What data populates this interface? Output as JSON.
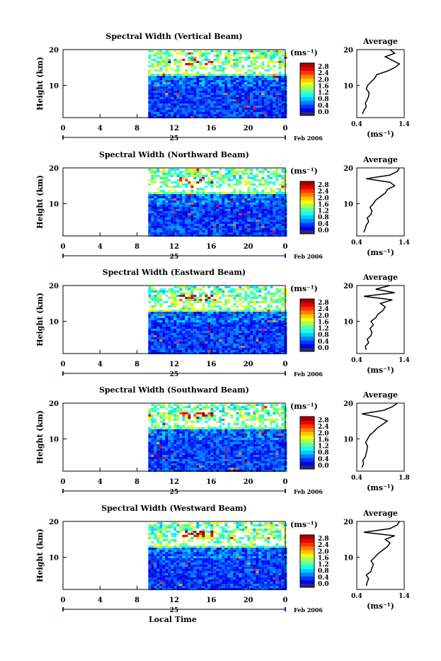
{
  "figure": {
    "date_label": "Feb 2006",
    "day_label": "25",
    "xlabel": "Local Time",
    "ylabel": "Height (km)",
    "unit_label": "(ms⁻¹)",
    "average_title": "Average",
    "average_xlabel": "(ms⁻¹)"
  },
  "chart_data": [
    {
      "type": "heatmap",
      "title": "Spectral Width (Vertical Beam)",
      "x_ticks": [
        "0",
        "4",
        "8",
        "12",
        "16",
        "20",
        "0"
      ],
      "xlim": [
        0,
        24
      ],
      "y_ticks": [
        "20",
        "10"
      ],
      "ylim": [
        1,
        20
      ],
      "data_start_hour": 9.2,
      "colorbar_ticks": [
        "2.8",
        "2.4",
        "2.0",
        "1.6",
        "1.2",
        "0.8",
        "0.4",
        "0.0"
      ],
      "colorbar_range": [
        0,
        2.8
      ],
      "average": {
        "x_ticks": [
          "0.4",
          "1.4"
        ],
        "xlim": [
          0.4,
          1.4
        ],
        "ylim": [
          1,
          20
        ],
        "height_km": [
          2,
          3,
          4,
          5,
          6,
          7,
          8,
          9,
          10,
          11,
          12,
          13,
          14,
          15,
          16,
          17,
          18,
          19,
          20
        ],
        "width_ms": [
          0.52,
          0.55,
          0.6,
          0.58,
          0.62,
          0.65,
          0.66,
          0.6,
          0.63,
          0.7,
          0.78,
          0.82,
          1.05,
          1.2,
          1.3,
          1.15,
          1.0,
          1.2,
          1.1
        ]
      }
    },
    {
      "type": "heatmap",
      "title": "Spectral Width (Northward Beam)",
      "x_ticks": [
        "0",
        "4",
        "8",
        "12",
        "16",
        "20",
        "0"
      ],
      "xlim": [
        0,
        24
      ],
      "y_ticks": [
        "20",
        "10"
      ],
      "ylim": [
        1,
        20
      ],
      "data_start_hour": 9.2,
      "colorbar_ticks": [
        "2.8",
        "2.4",
        "2.0",
        "1.6",
        "1.2",
        "0.8",
        "0.4",
        "0.0"
      ],
      "colorbar_range": [
        0,
        2.8
      ],
      "average": {
        "x_ticks": [
          "0.4",
          "1.4"
        ],
        "xlim": [
          0.4,
          1.4
        ],
        "ylim": [
          1,
          20
        ],
        "height_km": [
          2,
          3,
          4,
          5,
          6,
          7,
          8,
          9,
          10,
          11,
          12,
          13,
          14,
          15,
          16,
          17,
          18,
          19,
          20
        ],
        "width_ms": [
          0.55,
          0.58,
          0.6,
          0.65,
          0.62,
          0.7,
          0.72,
          0.68,
          0.75,
          0.8,
          0.9,
          1.0,
          1.05,
          1.2,
          1.1,
          0.6,
          1.1,
          1.25,
          1.3
        ]
      }
    },
    {
      "type": "heatmap",
      "title": "Spectral Width (Eastward Beam)",
      "x_ticks": [
        "0",
        "4",
        "8",
        "12",
        "16",
        "20",
        "0"
      ],
      "xlim": [
        0,
        24
      ],
      "y_ticks": [
        "20",
        "10"
      ],
      "ylim": [
        1,
        20
      ],
      "data_start_hour": 9.2,
      "colorbar_ticks": [
        "2.8",
        "2.4",
        "2.0",
        "1.6",
        "1.2",
        "0.8",
        "0.4",
        "0.0"
      ],
      "colorbar_range": [
        0,
        2.8
      ],
      "average": {
        "x_ticks": [
          "0.4",
          "1.4"
        ],
        "xlim": [
          0.4,
          1.4
        ],
        "ylim": [
          1,
          20
        ],
        "height_km": [
          2,
          3,
          4,
          5,
          6,
          7,
          8,
          9,
          10,
          11,
          12,
          13,
          14,
          15,
          16,
          17,
          18,
          19,
          20
        ],
        "width_ms": [
          0.6,
          0.58,
          0.65,
          0.62,
          0.7,
          0.72,
          0.68,
          0.75,
          0.7,
          0.8,
          0.85,
          0.95,
          1.0,
          0.9,
          1.15,
          0.55,
          1.2,
          0.8,
          1.1
        ]
      }
    },
    {
      "type": "heatmap",
      "title": "Spectral Width (Southward Beam)",
      "x_ticks": [
        "0",
        "4",
        "8",
        "12",
        "16",
        "20",
        "0"
      ],
      "xlim": [
        0,
        24
      ],
      "y_ticks": [
        "20",
        "10"
      ],
      "ylim": [
        1,
        20
      ],
      "data_start_hour": 9.2,
      "colorbar_ticks": [
        "2.8",
        "2.4",
        "2.0",
        "1.6",
        "1.2",
        "0.8",
        "0.4",
        "0.0"
      ],
      "colorbar_range": [
        0,
        2.8
      ],
      "average": {
        "x_ticks": [
          "0.4",
          "1.8"
        ],
        "xlim": [
          0.4,
          1.8
        ],
        "ylim": [
          1,
          20
        ],
        "height_km": [
          2,
          3,
          4,
          5,
          6,
          7,
          8,
          9,
          10,
          11,
          12,
          13,
          14,
          15,
          16,
          17,
          18,
          19,
          20
        ],
        "width_ms": [
          0.55,
          0.6,
          0.58,
          0.65,
          0.68,
          0.7,
          0.72,
          0.66,
          0.72,
          0.78,
          0.9,
          1.0,
          1.15,
          1.3,
          1.05,
          0.55,
          1.2,
          1.45,
          1.6
        ]
      }
    },
    {
      "type": "heatmap",
      "title": "Spectral Width (Westward Beam)",
      "x_ticks": [
        "0",
        "4",
        "8",
        "12",
        "16",
        "20",
        "0"
      ],
      "xlim": [
        0,
        24
      ],
      "y_ticks": [
        "20",
        "10"
      ],
      "ylim": [
        1,
        20
      ],
      "data_start_hour": 9.2,
      "colorbar_ticks": [
        "2.8",
        "2.4",
        "2.0",
        "1.6",
        "1.2",
        "0.8",
        "0.4",
        "0.0"
      ],
      "colorbar_range": [
        0,
        2.8
      ],
      "average": {
        "x_ticks": [
          "0.4",
          "1.4"
        ],
        "xlim": [
          0.4,
          1.4
        ],
        "ylim": [
          1,
          20
        ],
        "height_km": [
          2,
          3,
          4,
          5,
          6,
          7,
          8,
          9,
          10,
          11,
          12,
          13,
          14,
          15,
          16,
          17,
          18,
          19,
          20
        ],
        "width_ms": [
          0.6,
          0.62,
          0.65,
          0.6,
          0.7,
          0.72,
          0.75,
          0.7,
          0.78,
          0.85,
          0.95,
          1.05,
          1.1,
          1.0,
          1.2,
          0.55,
          1.1,
          1.25,
          1.3
        ]
      }
    }
  ]
}
